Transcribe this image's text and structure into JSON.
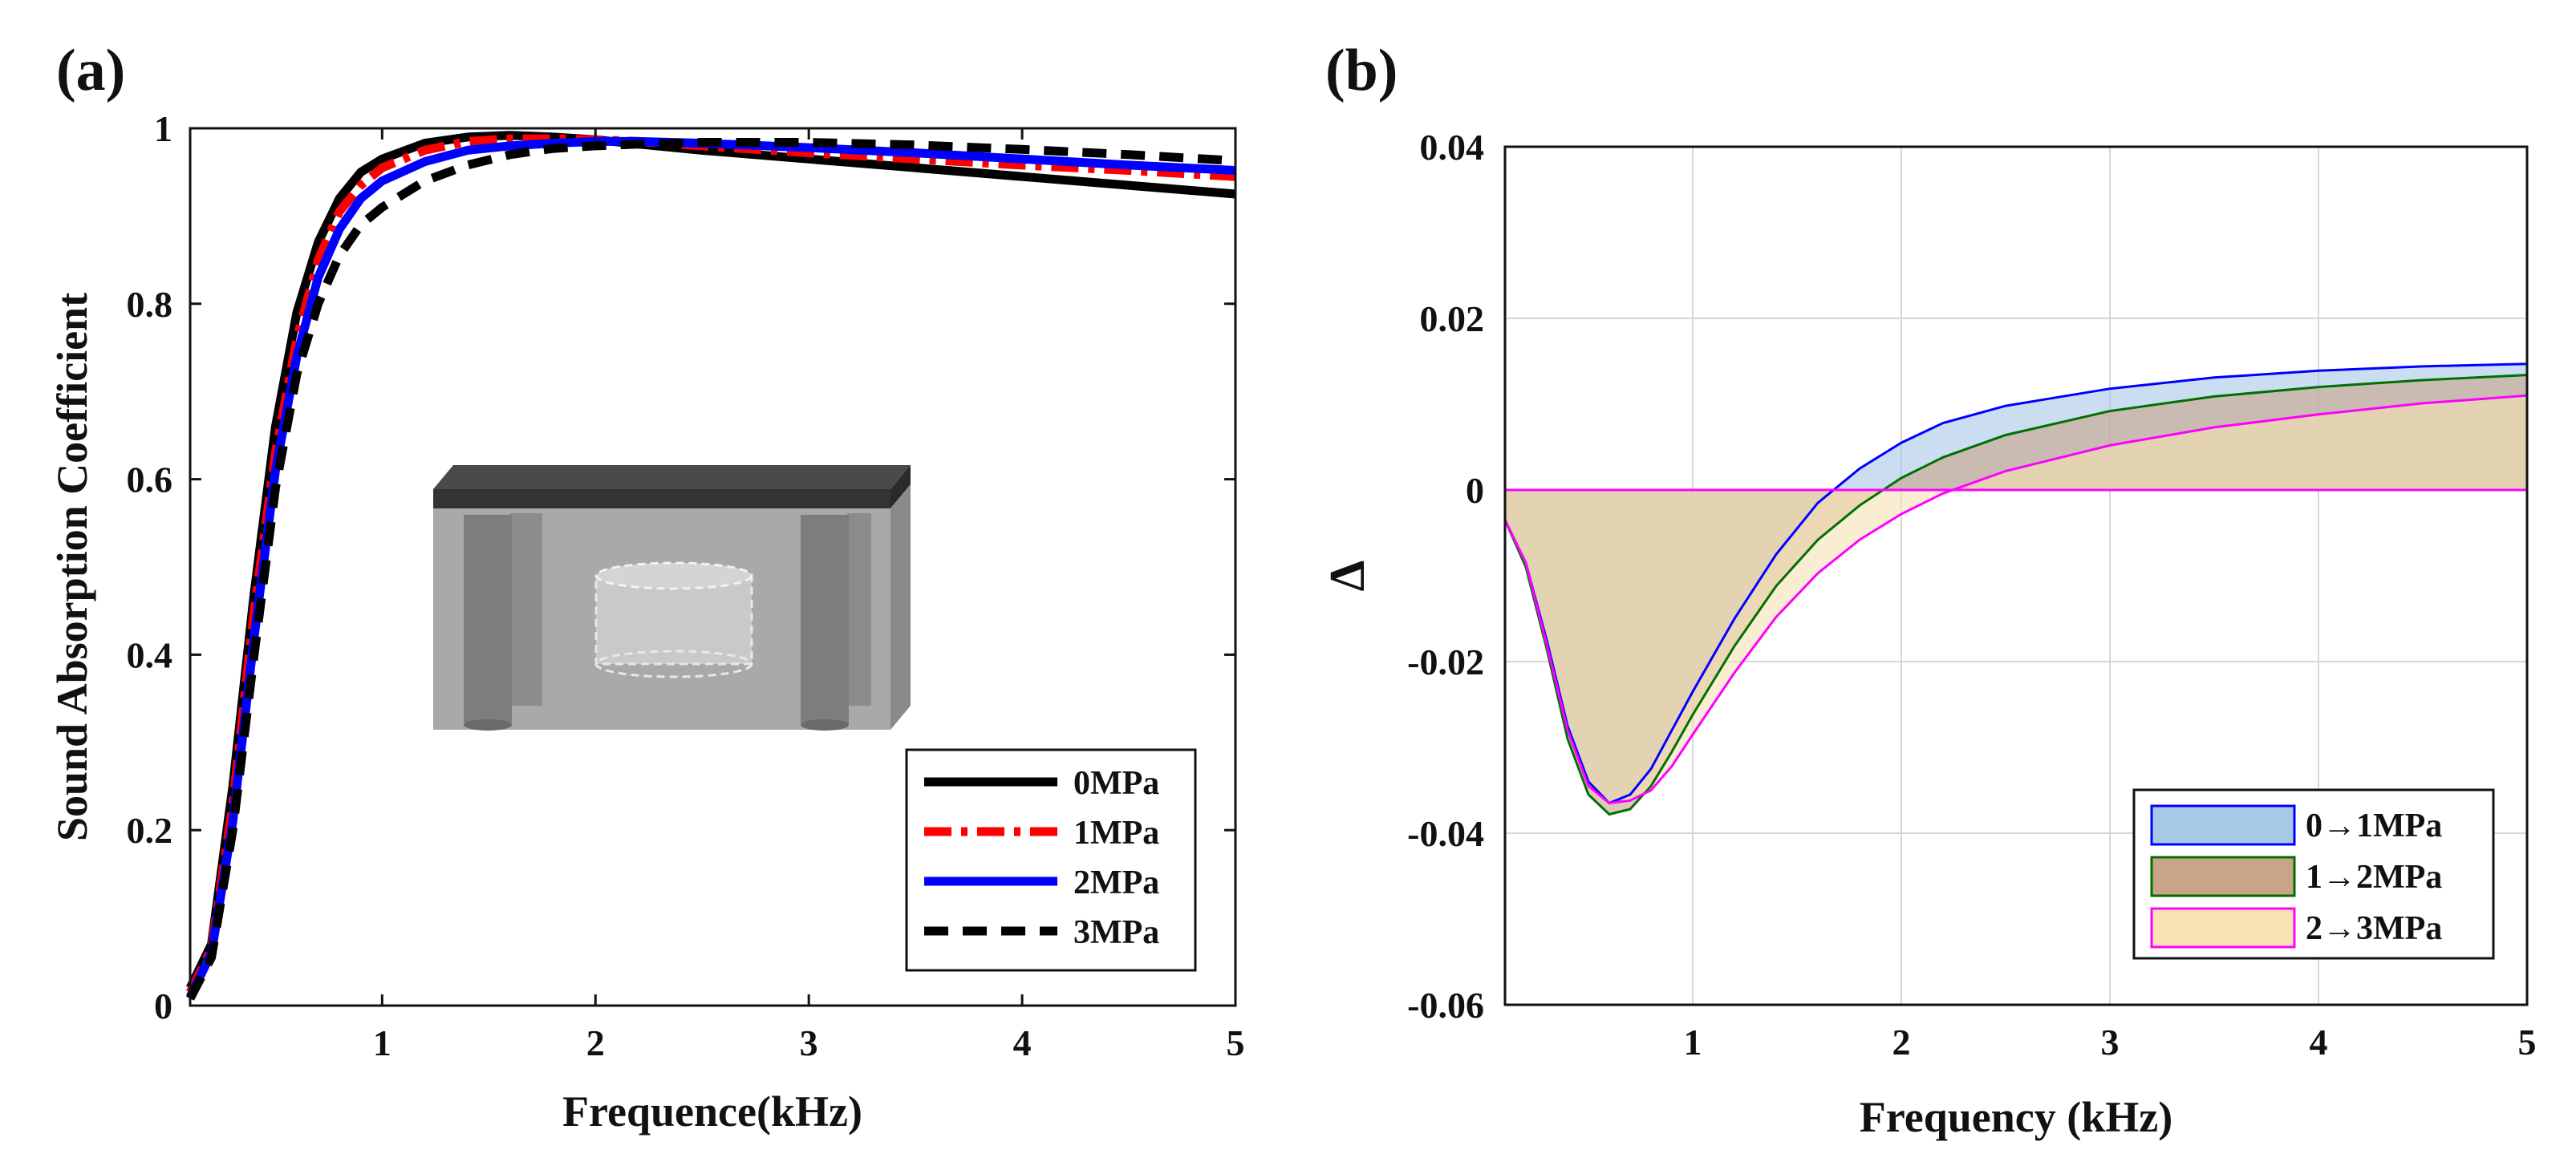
{
  "chart_data": [
    {
      "panel": "(a)",
      "type": "line",
      "xlabel": "Frequence(kHz)",
      "ylabel": "Sound Absorption Coefficient",
      "xlim": [
        0.1,
        5
      ],
      "ylim": [
        0,
        1
      ],
      "x_ticks": [
        "1",
        "2",
        "3",
        "4",
        "5"
      ],
      "y_ticks": [
        "0",
        "0.2",
        "0.4",
        "0.6",
        "0.8",
        "1"
      ],
      "grid": false,
      "legend_position": "bottom-right",
      "inset": "schematic of sound-absorbing unit (top plate, cylindrical pillars, central cylindrical cavity)",
      "x": [
        0.1,
        0.2,
        0.3,
        0.4,
        0.5,
        0.6,
        0.7,
        0.8,
        0.9,
        1.0,
        1.2,
        1.4,
        1.6,
        1.8,
        2.0,
        2.2,
        2.5,
        3.0,
        3.5,
        4.0,
        4.5,
        5.0
      ],
      "series": [
        {
          "name": "0MPa",
          "color": "#000000",
          "style": "solid",
          "values": [
            0.02,
            0.07,
            0.25,
            0.47,
            0.66,
            0.79,
            0.87,
            0.92,
            0.95,
            0.965,
            0.983,
            0.99,
            0.992,
            0.99,
            0.987,
            0.982,
            0.975,
            0.965,
            0.955,
            0.945,
            0.935,
            0.925
          ]
        },
        {
          "name": "1MPa",
          "color": "#ff0000",
          "style": "dashdot",
          "values": [
            0.015,
            0.065,
            0.23,
            0.45,
            0.63,
            0.76,
            0.85,
            0.905,
            0.935,
            0.955,
            0.975,
            0.985,
            0.988,
            0.988,
            0.987,
            0.985,
            0.98,
            0.972,
            0.965,
            0.958,
            0.952,
            0.945
          ]
        },
        {
          "name": "2MPa",
          "color": "#0000ff",
          "style": "solid",
          "values": [
            0.01,
            0.06,
            0.21,
            0.42,
            0.61,
            0.74,
            0.83,
            0.885,
            0.92,
            0.94,
            0.962,
            0.975,
            0.98,
            0.983,
            0.985,
            0.985,
            0.983,
            0.978,
            0.972,
            0.965,
            0.958,
            0.952
          ]
        },
        {
          "name": "3MPa",
          "color": "#000000",
          "style": "dashed",
          "values": [
            0.008,
            0.055,
            0.2,
            0.4,
            0.59,
            0.72,
            0.8,
            0.855,
            0.89,
            0.91,
            0.94,
            0.958,
            0.97,
            0.977,
            0.98,
            0.982,
            0.984,
            0.984,
            0.981,
            0.976,
            0.97,
            0.963
          ]
        }
      ]
    },
    {
      "panel": "(b)",
      "type": "area",
      "xlabel": "Frequency (kHz)",
      "ylabel": "Δ",
      "xlim": [
        0.1,
        5
      ],
      "ylim": [
        -0.06,
        0.04
      ],
      "x_ticks": [
        "1",
        "2",
        "3",
        "4",
        "5"
      ],
      "y_ticks": [
        "0.04",
        "0.02",
        "0",
        "-0.02",
        "-0.04",
        "-0.06"
      ],
      "grid": true,
      "legend_position": "bottom-right",
      "x": [
        0.1,
        0.2,
        0.3,
        0.4,
        0.5,
        0.6,
        0.7,
        0.8,
        0.9,
        1.0,
        1.2,
        1.4,
        1.6,
        1.8,
        2.0,
        2.2,
        2.5,
        3.0,
        3.5,
        4.0,
        4.5,
        5.0
      ],
      "series": [
        {
          "name": "0→1MPa",
          "fill": "#a8c8e8",
          "edge": "#0000ff",
          "values": [
            -0.0035,
            -0.0085,
            -0.0175,
            -0.0275,
            -0.034,
            -0.0365,
            -0.0355,
            -0.0325,
            -0.028,
            -0.0235,
            -0.015,
            -0.0075,
            -0.0015,
            0.0025,
            0.0055,
            0.0078,
            0.0098,
            0.0118,
            0.0131,
            0.0139,
            0.0144,
            0.0147
          ]
        },
        {
          "name": "1→2MPa",
          "fill": "#c8a488",
          "edge": "#007000",
          "values": [
            -0.0035,
            -0.009,
            -0.0185,
            -0.029,
            -0.0355,
            -0.0378,
            -0.0372,
            -0.0345,
            -0.0305,
            -0.0262,
            -0.0182,
            -0.0112,
            -0.0058,
            -0.0018,
            0.0014,
            0.0038,
            0.0064,
            0.0092,
            0.0109,
            0.012,
            0.0128,
            0.0134
          ]
        },
        {
          "name": "2→3MPa",
          "fill": "#f7e2b4",
          "edge": "#ff00ff",
          "values": [
            -0.0035,
            -0.0085,
            -0.018,
            -0.028,
            -0.0345,
            -0.0365,
            -0.0362,
            -0.035,
            -0.0322,
            -0.0285,
            -0.0213,
            -0.0148,
            -0.0097,
            -0.0058,
            -0.0028,
            -0.0004,
            0.0022,
            0.0052,
            0.0073,
            0.0088,
            0.0101,
            0.011
          ]
        }
      ]
    }
  ],
  "colors": {
    "blend_12": "#c9a882",
    "blend_01_23": "#d9cdb8"
  }
}
